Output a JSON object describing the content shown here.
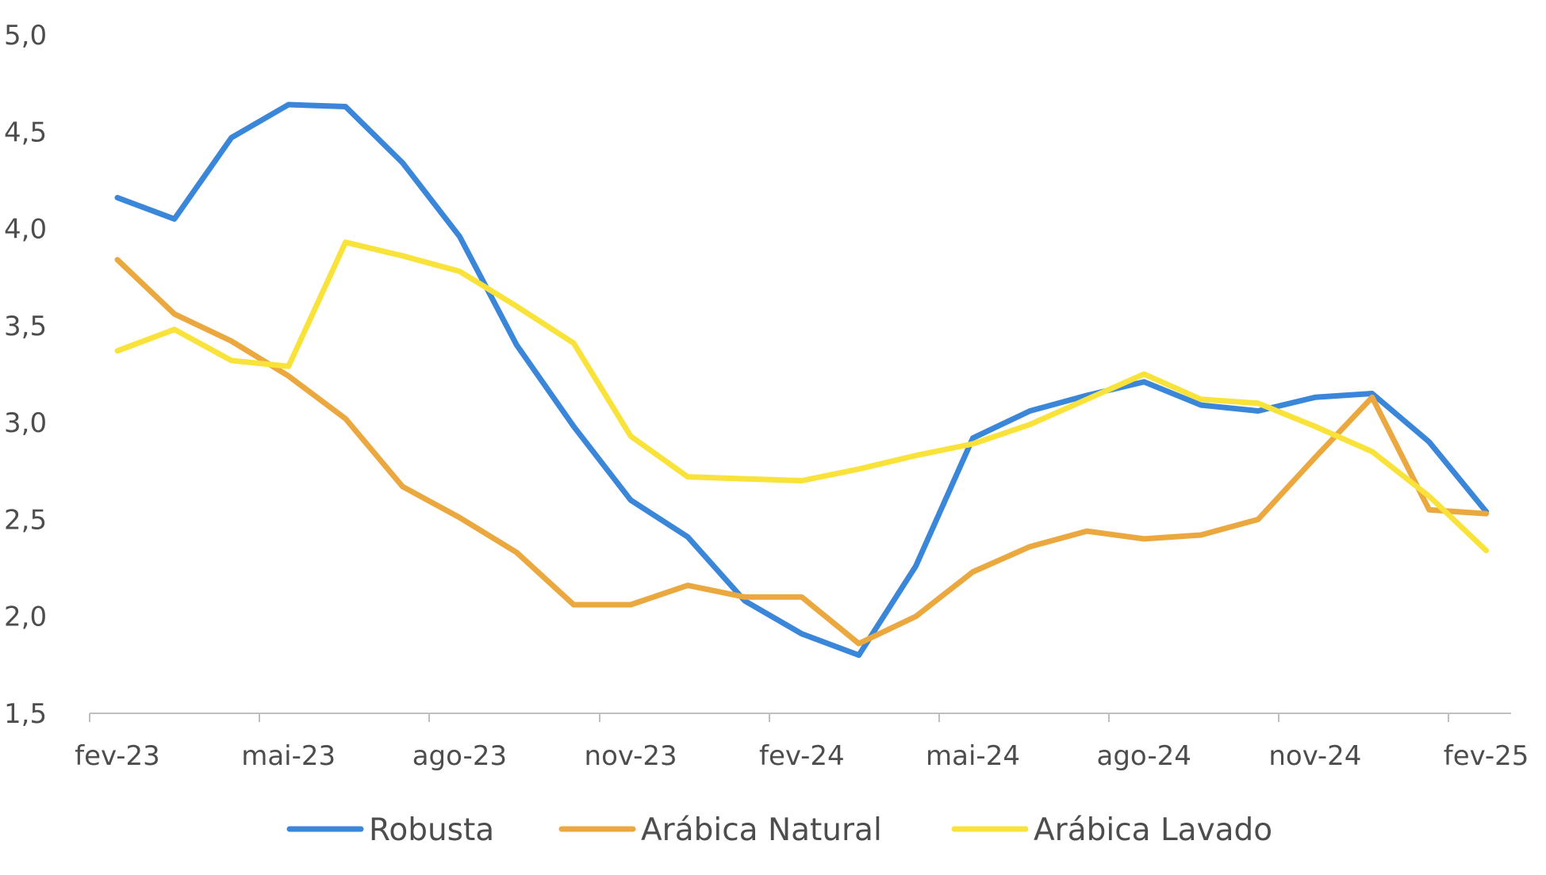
{
  "chart_data": {
    "type": "line",
    "title": "",
    "xlabel": "",
    "ylabel": "",
    "ylim": [
      1.5,
      5.0
    ],
    "y_ticks": [
      "1,5",
      "2,0",
      "2,5",
      "3,0",
      "3,5",
      "4,0",
      "4,5",
      "5,0"
    ],
    "y_tick_values": [
      1.5,
      2.0,
      2.5,
      3.0,
      3.5,
      4.0,
      4.5,
      5.0
    ],
    "x_tick_labels": [
      "fev-23",
      "mai-23",
      "ago-23",
      "nov-23",
      "fev-24",
      "mai-24",
      "ago-24",
      "nov-24",
      "fev-25"
    ],
    "x": [
      "fev-23",
      "mar-23",
      "abr-23",
      "mai-23",
      "jun-23",
      "jul-23",
      "ago-23",
      "set-23",
      "out-23",
      "nov-23",
      "dez-23",
      "jan-24",
      "fev-24",
      "mar-24",
      "abr-24",
      "mai-24",
      "jun-24",
      "jul-24",
      "ago-24",
      "set-24",
      "out-24",
      "nov-24",
      "dez-24",
      "jan-25",
      "fev-25"
    ],
    "grid": false,
    "legend_position": "bottom",
    "series": [
      {
        "name": "Robusta",
        "color": "#3a86d9",
        "values": [
          4.16,
          4.05,
          4.47,
          4.64,
          4.63,
          4.34,
          3.96,
          3.4,
          2.98,
          2.6,
          2.41,
          2.08,
          1.91,
          1.8,
          2.26,
          2.92,
          3.06,
          3.14,
          3.21,
          3.09,
          3.06,
          3.13,
          3.15,
          2.9,
          2.54
        ]
      },
      {
        "name": "Arábica Natural",
        "color": "#eba83f",
        "values": [
          3.84,
          3.56,
          3.42,
          3.24,
          3.02,
          2.67,
          2.51,
          2.33,
          2.06,
          2.06,
          2.16,
          2.1,
          2.1,
          1.86,
          2.0,
          2.23,
          2.36,
          2.44,
          2.4,
          2.42,
          2.5,
          2.82,
          3.13,
          2.55,
          2.53
        ]
      },
      {
        "name": "Arábica Lavado",
        "color": "#f9e33b",
        "values": [
          3.37,
          3.48,
          3.32,
          3.29,
          3.93,
          3.86,
          3.78,
          3.6,
          3.41,
          2.93,
          2.72,
          2.71,
          2.7,
          2.76,
          2.83,
          2.89,
          2.99,
          3.12,
          3.25,
          3.12,
          3.1,
          2.98,
          2.85,
          2.62,
          2.34
        ]
      }
    ]
  }
}
